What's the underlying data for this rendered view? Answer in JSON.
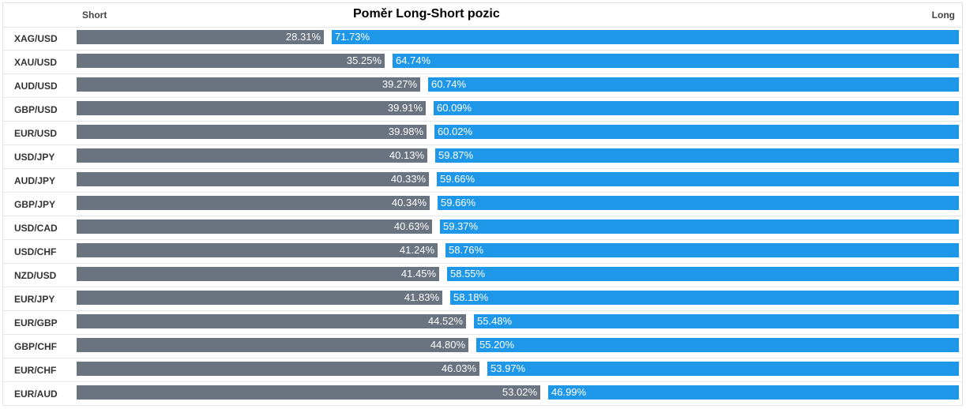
{
  "header": {
    "short_label": "Short",
    "long_label": "Long",
    "title": "Poměr Long-Short pozic"
  },
  "colors": {
    "short": "#6a7480",
    "long": "#1f97e9"
  },
  "chart_data": {
    "type": "bar",
    "title": "Poměr Long-Short pozic",
    "categories": [
      "XAG/USD",
      "XAU/USD",
      "AUD/USD",
      "GBP/USD",
      "EUR/USD",
      "USD/JPY",
      "AUD/JPY",
      "GBP/JPY",
      "USD/CAD",
      "USD/CHF",
      "NZD/USD",
      "EUR/JPY",
      "EUR/GBP",
      "GBP/CHF",
      "EUR/CHF",
      "EUR/AUD"
    ],
    "series": [
      {
        "name": "Short",
        "values": [
          "28.31%",
          "35.25%",
          "39.27%",
          "39.91%",
          "39.98%",
          "40.13%",
          "40.33%",
          "40.34%",
          "40.63%",
          "41.24%",
          "41.45%",
          "41.83%",
          "44.52%",
          "44.80%",
          "46.03%",
          "53.02%"
        ]
      },
      {
        "name": "Long",
        "values": [
          "71.73%",
          "64.74%",
          "60.74%",
          "60.09%",
          "60.02%",
          "59.87%",
          "59.66%",
          "59.66%",
          "59.37%",
          "58.76%",
          "58.55%",
          "58.18%",
          "55.48%",
          "55.20%",
          "53.97%",
          "46.99%"
        ]
      }
    ],
    "stacked": true,
    "orientation": "horizontal",
    "xlim": [
      0,
      100
    ]
  }
}
